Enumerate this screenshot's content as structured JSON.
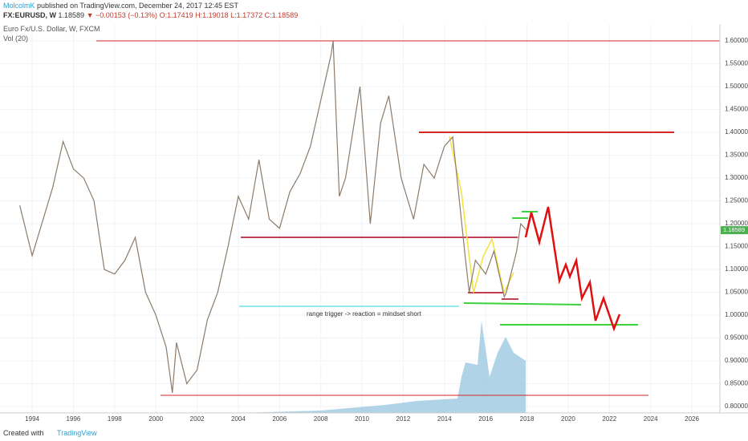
{
  "header": {
    "author": "MolcolmK",
    "published": "published on TradingView.com, December 24, 2017 12:45 EST",
    "symbol": "FX:EURUSD, W",
    "last": "1.18589",
    "change": "▼ −0.00153 (−0.13%)",
    "ohlc": "O:1.17419 H:1.19018 L:1.17372 C:1.18589",
    "instrument": "Euro Fx/U.S. Dollar, W, FXCM",
    "indicator": "Vol (20)"
  },
  "annotation": "range trigger -> reaction = mindset short",
  "footer": {
    "created": "Created with",
    "brand": "TradingView"
  },
  "chart_data": {
    "type": "line",
    "color": "#8c7b6b",
    "x": [
      1993.4,
      1994,
      1995,
      1995.5,
      1996,
      1996.5,
      1997,
      1997.5,
      1998,
      1998.5,
      1999,
      1999.5,
      2000,
      2000.5,
      2000.8,
      2001,
      2001.5,
      2002,
      2002.5,
      2003,
      2003.5,
      2004,
      2004.5,
      2005,
      2005.5,
      2006,
      2006.5,
      2007,
      2007.5,
      2008,
      2008.5,
      2008.6,
      2008.9,
      2009.2,
      2009.9,
      2010.4,
      2010.9,
      2011.3,
      2011.9,
      2012.5,
      2013,
      2013.5,
      2014,
      2014.4,
      2015,
      2015.2,
      2015.5,
      2016,
      2016.4,
      2016.9,
      2017,
      2017.5,
      2017.7,
      2017.98
    ],
    "values": [
      1.24,
      1.13,
      1.28,
      1.38,
      1.32,
      1.3,
      1.25,
      1.1,
      1.09,
      1.12,
      1.17,
      1.05,
      1.0,
      0.93,
      0.83,
      0.94,
      0.85,
      0.88,
      0.99,
      1.05,
      1.15,
      1.26,
      1.21,
      1.34,
      1.21,
      1.19,
      1.27,
      1.31,
      1.37,
      1.47,
      1.57,
      1.6,
      1.26,
      1.3,
      1.5,
      1.2,
      1.42,
      1.48,
      1.3,
      1.21,
      1.33,
      1.3,
      1.37,
      1.39,
      1.13,
      1.05,
      1.12,
      1.09,
      1.14,
      1.04,
      1.05,
      1.14,
      1.2,
      1.18589
    ],
    "last_label": "1.18589",
    "xlim": [
      1992.44,
      2027.36
    ],
    "ylim": [
      0.786,
      1.637
    ],
    "xticks": [
      1994,
      1996,
      1998,
      2000,
      2002,
      2004,
      2006,
      2008,
      2010,
      2012,
      2014,
      2016,
      2018,
      2020,
      2022,
      2024,
      2026
    ],
    "yticks": [
      {
        "value": 0.8,
        "label": "0.80000"
      },
      {
        "value": 0.85,
        "label": "0.85000"
      },
      {
        "value": 0.9,
        "label": "0.90000"
      },
      {
        "value": 0.95,
        "label": "0.95000"
      },
      {
        "value": 1.0,
        "label": "1.00000"
      },
      {
        "value": 1.05,
        "label": "1.05000"
      },
      {
        "value": 1.1,
        "label": "1.10000"
      },
      {
        "value": 1.15,
        "label": "1.15000"
      },
      {
        "value": 1.2,
        "label": "1.20000"
      },
      {
        "value": 1.25,
        "label": "1.25000"
      },
      {
        "value": 1.3,
        "label": "1.30000"
      },
      {
        "value": 1.35,
        "label": "1.35000"
      },
      {
        "value": 1.4,
        "label": "1.40000"
      },
      {
        "value": 1.45,
        "label": "1.45000"
      },
      {
        "value": 1.5,
        "label": "1.50000"
      },
      {
        "value": 1.55,
        "label": "1.55000"
      },
      {
        "value": 1.6,
        "label": "1.60000"
      }
    ]
  }
}
